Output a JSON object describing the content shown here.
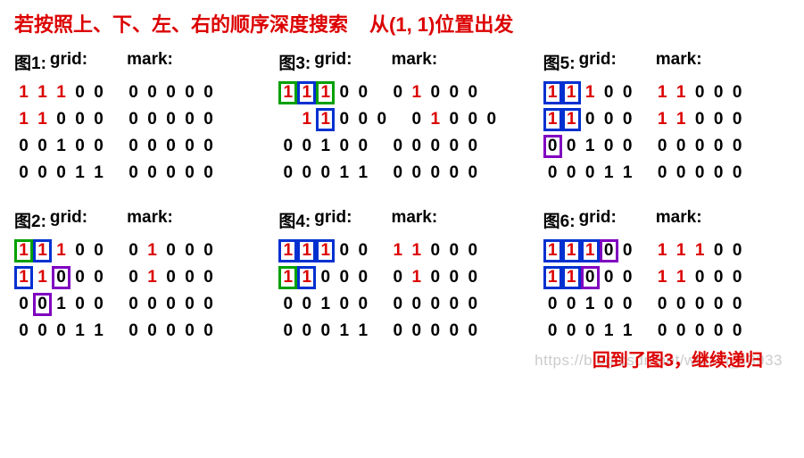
{
  "title": {
    "part1": "若按照上、下、左、右的顺序深度搜索",
    "part2": "从(1, 1)位置出发"
  },
  "labels": {
    "grid": "grid:",
    "mark": "mark:"
  },
  "panels": [
    {
      "fig": "图1:",
      "grid": [
        [
          {
            "v": "1",
            "c": "visited"
          },
          {
            "v": "1",
            "c": "visited"
          },
          {
            "v": "1",
            "c": "visited"
          },
          {
            "v": "0"
          },
          {
            "v": "0"
          }
        ],
        [
          {
            "v": "1",
            "c": "visited"
          },
          {
            "v": "1",
            "c": "visited"
          },
          {
            "v": "0"
          },
          {
            "v": "0"
          },
          {
            "v": "0"
          }
        ],
        [
          {
            "v": "0"
          },
          {
            "v": "0"
          },
          {
            "v": "1"
          },
          {
            "v": "0"
          },
          {
            "v": "0"
          }
        ],
        [
          {
            "v": "0"
          },
          {
            "v": "0"
          },
          {
            "v": "0"
          },
          {
            "v": "1"
          },
          {
            "v": "1"
          }
        ]
      ],
      "mark": [
        [
          {
            "v": "0"
          },
          {
            "v": "0"
          },
          {
            "v": "0"
          },
          {
            "v": "0"
          },
          {
            "v": "0"
          }
        ],
        [
          {
            "v": "0"
          },
          {
            "v": "0"
          },
          {
            "v": "0"
          },
          {
            "v": "0"
          },
          {
            "v": "0"
          }
        ],
        [
          {
            "v": "0"
          },
          {
            "v": "0"
          },
          {
            "v": "0"
          },
          {
            "v": "0"
          },
          {
            "v": "0"
          }
        ],
        [
          {
            "v": "0"
          },
          {
            "v": "0"
          },
          {
            "v": "0"
          },
          {
            "v": "0"
          },
          {
            "v": "0"
          }
        ]
      ]
    },
    {
      "fig": "图2:",
      "grid": [
        [
          {
            "v": "1",
            "c": "visited box-green"
          },
          {
            "v": "1",
            "c": "visited box-blue"
          },
          {
            "v": "1",
            "c": "visited"
          },
          {
            "v": "0"
          },
          {
            "v": "0"
          }
        ],
        [
          {
            "v": "1",
            "c": "visited box-blue"
          },
          {
            "v": "1",
            "c": "visited"
          },
          {
            "v": "0",
            "c": "box-purple"
          },
          {
            "v": "0"
          },
          {
            "v": "0"
          }
        ],
        [
          {
            "v": "0"
          },
          {
            "v": "0",
            "c": "box-purple"
          },
          {
            "v": "1"
          },
          {
            "v": "0"
          },
          {
            "v": "0"
          }
        ],
        [
          {
            "v": "0"
          },
          {
            "v": "0"
          },
          {
            "v": "0"
          },
          {
            "v": "1"
          },
          {
            "v": "1"
          }
        ]
      ],
      "mark": [
        [
          {
            "v": "0"
          },
          {
            "v": "1",
            "c": "changed"
          },
          {
            "v": "0"
          },
          {
            "v": "0"
          },
          {
            "v": "0"
          }
        ],
        [
          {
            "v": "0"
          },
          {
            "v": "1",
            "c": "changed"
          },
          {
            "v": "0"
          },
          {
            "v": "0"
          },
          {
            "v": "0"
          }
        ],
        [
          {
            "v": "0"
          },
          {
            "v": "0"
          },
          {
            "v": "0"
          },
          {
            "v": "0"
          },
          {
            "v": "0"
          }
        ],
        [
          {
            "v": "0"
          },
          {
            "v": "0"
          },
          {
            "v": "0"
          },
          {
            "v": "0"
          },
          {
            "v": "0"
          }
        ]
      ]
    },
    {
      "fig": "图3:",
      "grid": [
        [
          {
            "v": "1",
            "c": "visited box-green"
          },
          {
            "v": "1",
            "c": "visited box-blue"
          },
          {
            "v": "1",
            "c": "visited box-green"
          },
          {
            "v": "0"
          },
          {
            "v": "0"
          }
        ],
        [
          {
            "v": "1",
            "c": "visited indent"
          },
          {
            "v": "1",
            "c": "visited box-blue"
          },
          {
            "v": "0"
          },
          {
            "v": "0"
          },
          {
            "v": "0"
          }
        ],
        [
          {
            "v": "0"
          },
          {
            "v": "0"
          },
          {
            "v": "1"
          },
          {
            "v": "0"
          },
          {
            "v": "0"
          }
        ],
        [
          {
            "v": "0"
          },
          {
            "v": "0"
          },
          {
            "v": "0"
          },
          {
            "v": "1"
          },
          {
            "v": "1"
          }
        ]
      ],
      "mark": [
        [
          {
            "v": "0"
          },
          {
            "v": "1",
            "c": "changed"
          },
          {
            "v": "0"
          },
          {
            "v": "0"
          },
          {
            "v": "0"
          }
        ],
        [
          {
            "v": "0"
          },
          {
            "v": "1",
            "c": "changed"
          },
          {
            "v": "0"
          },
          {
            "v": "0"
          },
          {
            "v": "0"
          }
        ],
        [
          {
            "v": "0"
          },
          {
            "v": "0"
          },
          {
            "v": "0"
          },
          {
            "v": "0"
          },
          {
            "v": "0"
          }
        ],
        [
          {
            "v": "0"
          },
          {
            "v": "0"
          },
          {
            "v": "0"
          },
          {
            "v": "0"
          },
          {
            "v": "0"
          }
        ]
      ]
    },
    {
      "fig": "图4:",
      "grid": [
        [
          {
            "v": "1",
            "c": "visited box-blue"
          },
          {
            "v": "1",
            "c": "visited box-blue"
          },
          {
            "v": "1",
            "c": "visited box-blue"
          },
          {
            "v": "0"
          },
          {
            "v": "0"
          }
        ],
        [
          {
            "v": "1",
            "c": "visited box-green"
          },
          {
            "v": "1",
            "c": "visited box-blue"
          },
          {
            "v": "0"
          },
          {
            "v": "0"
          },
          {
            "v": "0"
          }
        ],
        [
          {
            "v": "0"
          },
          {
            "v": "0"
          },
          {
            "v": "1"
          },
          {
            "v": "0"
          },
          {
            "v": "0"
          }
        ],
        [
          {
            "v": "0"
          },
          {
            "v": "0"
          },
          {
            "v": "0"
          },
          {
            "v": "1"
          },
          {
            "v": "1"
          }
        ]
      ],
      "mark": [
        [
          {
            "v": "1",
            "c": "changed"
          },
          {
            "v": "1",
            "c": "changed"
          },
          {
            "v": "0"
          },
          {
            "v": "0"
          },
          {
            "v": "0"
          }
        ],
        [
          {
            "v": "0"
          },
          {
            "v": "1",
            "c": "changed"
          },
          {
            "v": "0"
          },
          {
            "v": "0"
          },
          {
            "v": "0"
          }
        ],
        [
          {
            "v": "0"
          },
          {
            "v": "0"
          },
          {
            "v": "0"
          },
          {
            "v": "0"
          },
          {
            "v": "0"
          }
        ],
        [
          {
            "v": "0"
          },
          {
            "v": "0"
          },
          {
            "v": "0"
          },
          {
            "v": "0"
          },
          {
            "v": "0"
          }
        ]
      ]
    },
    {
      "fig": "图5:",
      "grid": [
        [
          {
            "v": "1",
            "c": "visited box-blue"
          },
          {
            "v": "1",
            "c": "visited box-blue"
          },
          {
            "v": "1",
            "c": "visited"
          },
          {
            "v": "0"
          },
          {
            "v": "0"
          }
        ],
        [
          {
            "v": "1",
            "c": "visited box-blue"
          },
          {
            "v": "1",
            "c": "visited box-blue"
          },
          {
            "v": "0"
          },
          {
            "v": "0"
          },
          {
            "v": "0"
          }
        ],
        [
          {
            "v": "0",
            "c": "box-purple"
          },
          {
            "v": "0"
          },
          {
            "v": "1"
          },
          {
            "v": "0"
          },
          {
            "v": "0"
          }
        ],
        [
          {
            "v": "0"
          },
          {
            "v": "0"
          },
          {
            "v": "0"
          },
          {
            "v": "1"
          },
          {
            "v": "1"
          }
        ]
      ],
      "mark": [
        [
          {
            "v": "1",
            "c": "changed"
          },
          {
            "v": "1",
            "c": "changed"
          },
          {
            "v": "0"
          },
          {
            "v": "0"
          },
          {
            "v": "0"
          }
        ],
        [
          {
            "v": "1",
            "c": "changed"
          },
          {
            "v": "1",
            "c": "changed"
          },
          {
            "v": "0"
          },
          {
            "v": "0"
          },
          {
            "v": "0"
          }
        ],
        [
          {
            "v": "0"
          },
          {
            "v": "0"
          },
          {
            "v": "0"
          },
          {
            "v": "0"
          },
          {
            "v": "0"
          }
        ],
        [
          {
            "v": "0"
          },
          {
            "v": "0"
          },
          {
            "v": "0"
          },
          {
            "v": "0"
          },
          {
            "v": "0"
          }
        ]
      ]
    },
    {
      "fig": "图6:",
      "grid": [
        [
          {
            "v": "1",
            "c": "visited box-blue"
          },
          {
            "v": "1",
            "c": "visited box-blue"
          },
          {
            "v": "1",
            "c": "visited box-blue"
          },
          {
            "v": "0",
            "c": "box-purple"
          },
          {
            "v": "0"
          }
        ],
        [
          {
            "v": "1",
            "c": "visited box-blue"
          },
          {
            "v": "1",
            "c": "visited box-blue"
          },
          {
            "v": "0",
            "c": "box-purple"
          },
          {
            "v": "0"
          },
          {
            "v": "0"
          }
        ],
        [
          {
            "v": "0"
          },
          {
            "v": "0"
          },
          {
            "v": "1"
          },
          {
            "v": "0"
          },
          {
            "v": "0"
          }
        ],
        [
          {
            "v": "0"
          },
          {
            "v": "0"
          },
          {
            "v": "0"
          },
          {
            "v": "1"
          },
          {
            "v": "1"
          }
        ]
      ],
      "mark": [
        [
          {
            "v": "1",
            "c": "changed"
          },
          {
            "v": "1",
            "c": "changed"
          },
          {
            "v": "1",
            "c": "changed"
          },
          {
            "v": "0"
          },
          {
            "v": "0"
          }
        ],
        [
          {
            "v": "1",
            "c": "changed"
          },
          {
            "v": "1",
            "c": "changed"
          },
          {
            "v": "0"
          },
          {
            "v": "0"
          },
          {
            "v": "0"
          }
        ],
        [
          {
            "v": "0"
          },
          {
            "v": "0"
          },
          {
            "v": "0"
          },
          {
            "v": "0"
          },
          {
            "v": "0"
          }
        ],
        [
          {
            "v": "0"
          },
          {
            "v": "0"
          },
          {
            "v": "0"
          },
          {
            "v": "0"
          },
          {
            "v": "0"
          }
        ]
      ]
    }
  ],
  "panel_order": [
    0,
    2,
    4,
    1,
    3,
    5
  ],
  "footer": {
    "watermark": "https://blog.csdn.net/weixin_43933",
    "red_text": "回到了图3，继续递归"
  },
  "colors": {
    "red": "#dc0000",
    "green": "#00a000",
    "blue": "#0030d0",
    "purple": "#8000c0",
    "black": "#000000",
    "bg": "#ffffff"
  }
}
